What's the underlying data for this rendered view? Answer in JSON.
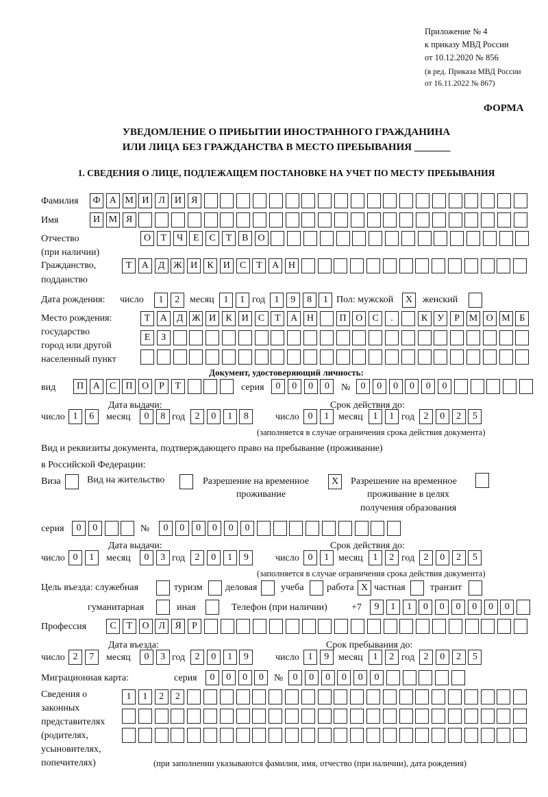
{
  "header": {
    "line1": "Приложение № 4",
    "line2": "к приказу МВД России",
    "line3": "от 10.12.2020 № 856",
    "line4": "(в ред. Приказа МВД России",
    "line5": "от 16.11.2022 № 867)",
    "forma": "ФОРМА"
  },
  "title": {
    "line1": "УВЕДОМЛЕНИЕ О ПРИБЫТИИ ИНОСТРАННОГО ГРАЖДАНИНА",
    "line2": "ИЛИ ЛИЦА БЕЗ ГРАЖДАНСТВА В МЕСТО ПРЕБЫВАНИЯ _______"
  },
  "section1": "1. СВЕДЕНИЯ О ЛИЦЕ, ПОДЛЕЖАЩЕМ ПОСТАНОВКЕ НА УЧЕТ ПО МЕСТУ ПРЕБЫВАНИЯ",
  "labels": {
    "surname": "Фамилия",
    "name": "Имя",
    "patronymic": "Отчество",
    "patronymic2": "(при наличии)",
    "citizenship": "Гражданство,",
    "citizenship2": "подданство",
    "dob": "Дата рождения:",
    "day": "число",
    "month": "месяц",
    "year": "год",
    "sex": "Пол: мужской",
    "female": "женский",
    "pob1": "Место рождения:",
    "pob2": "государство",
    "pob3": "город или другой",
    "pob4": "населенный пункт",
    "idDoc": "Документ, удостоверяющий личность:",
    "kind": "вид",
    "series": "серия",
    "number": "№",
    "issueDate": "Дата выдачи:",
    "validUntil": "Срок действия до:",
    "validNote": "(заполняется в случае ограничения срока действия документа)",
    "rightDoc1": "Вид и реквизиты документа, подтверждающего право на пребывание (проживание)",
    "rightDoc2": "в Российской Федерации:",
    "visa": "Виза",
    "residence": "Вид на жительство",
    "trp1": "Разрешение на временное",
    "trp2": "проживание",
    "trpEdu1": "Разрешение на временное",
    "trpEdu2": "проживание в целях",
    "trpEdu3": "получения образования",
    "purpose": "Цель въезда: служебная",
    "tourism": "туризм",
    "business": "деловая",
    "study": "учеба",
    "work": "работа",
    "private": "частная",
    "transit": "транзит",
    "humanitarian": "гуманитарная",
    "other": "иная",
    "phone": "Телефон (при наличии)",
    "phonePrefix": "+7",
    "profession": "Профессия",
    "entryDate": "Дата въезда:",
    "stayUntil": "Срок пребывания до:",
    "migCard": "Миграционная карта:",
    "rep1": "Сведения о",
    "rep2": "законных",
    "rep3": "представителях",
    "rep4": "(родителях,",
    "rep5": "усыновителях,",
    "rep6": "попечителях)",
    "repNote": "(при заполнении указываются фамилия, имя, отчество (при наличии), дата рождения)"
  },
  "fields": {
    "surname": "ФАМИЛИЯ",
    "name": "ИМЯ",
    "patronymic": "ОТЧЕСТВО",
    "citizenship": "ТАДЖИКИСТАН",
    "dobDay": "12",
    "dobMonth": "11",
    "dobYear": "1981",
    "male": "X",
    "female": "",
    "pob1": "ТАДЖИКИСТАН ПОС. КУРМОМБ",
    "pob2": "ЕЗ",
    "pob3": "",
    "docKind": "ПАСПОРТ",
    "docSeries": "0000",
    "docNumber": "000000",
    "docIssueDay": "16",
    "docIssueMonth": "08",
    "docIssueYear": "2018",
    "docValidDay": "01",
    "docValidMonth": "11",
    "docValidYear": "2025",
    "visa": "",
    "residence": "",
    "trp": "X",
    "trpEdu": "",
    "rSeries": "00",
    "rNumber": "000000",
    "rIssueDay": "01",
    "rIssueMonth": "03",
    "rIssueYear": "2019",
    "rValidDay": "01",
    "rValidMonth": "12",
    "rValidYear": "2025",
    "pService": "",
    "pTourism": "",
    "pBusiness": "",
    "pStudy": "",
    "pWork": "X",
    "pPrivate": "",
    "pTransit": "",
    "pHumanitarian": "",
    "pOther": "",
    "phone": "911000000",
    "profession": "СТОЛЯР",
    "entryDay": "27",
    "entryMonth": "03",
    "entryYear": "2019",
    "stayDay": "19",
    "stayMonth": "12",
    "stayYear": "2025",
    "migSeries": "0000",
    "migNumber": "000000",
    "rep1": "1122",
    "rep2": "",
    "rep3": ""
  }
}
